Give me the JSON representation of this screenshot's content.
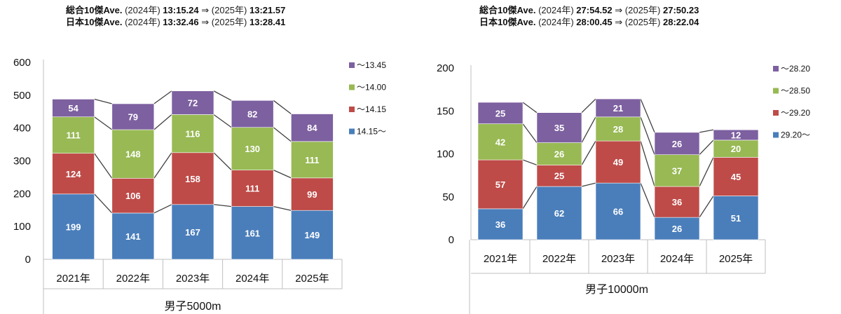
{
  "chart_data": [
    {
      "type": "bar",
      "stacked": true,
      "xlabel": "男子5000m",
      "ylabel": "",
      "ylim": [
        0,
        600
      ],
      "yticks": [
        0,
        100,
        200,
        300,
        400,
        500,
        600
      ],
      "categories": [
        "2021年",
        "2022年",
        "2023年",
        "2024年",
        "2025年"
      ],
      "series": [
        {
          "name": "14.15〜",
          "color": "#4a7ebb",
          "values": [
            199,
            141,
            167,
            161,
            149
          ]
        },
        {
          "name": "〜14.15",
          "color": "#be4b48",
          "values": [
            124,
            106,
            158,
            111,
            99
          ]
        },
        {
          "name": "〜14.00",
          "color": "#98b954",
          "values": [
            111,
            148,
            116,
            130,
            111
          ]
        },
        {
          "name": "〜13.45",
          "color": "#7d60a0",
          "values": [
            54,
            79,
            72,
            82,
            84
          ]
        }
      ],
      "legend_position": "right",
      "averages": [
        {
          "label": "総合10傑Ave.",
          "y1_label": "(2024年)",
          "y1": "13:15.24",
          "arrow": "⇒",
          "y2_label": "(2025年)",
          "y2": "13:21.57"
        },
        {
          "label": "日本10傑Ave.",
          "y1_label": "(2024年)",
          "y1": "13:32.46",
          "arrow": "⇒",
          "y2_label": "(2025年)",
          "y2": "13:28.41"
        }
      ]
    },
    {
      "type": "bar",
      "stacked": true,
      "xlabel": "男子10000m",
      "ylabel": "",
      "ylim": [
        0,
        200
      ],
      "yticks": [
        0,
        50,
        100,
        150,
        200
      ],
      "categories": [
        "2021年",
        "2022年",
        "2023年",
        "2024年",
        "2025年"
      ],
      "series": [
        {
          "name": "29.20〜",
          "color": "#4a7ebb",
          "values": [
            36,
            62,
            66,
            26,
            51
          ]
        },
        {
          "name": "〜29.20",
          "color": "#be4b48",
          "values": [
            57,
            25,
            49,
            36,
            45
          ]
        },
        {
          "name": "〜28.50",
          "color": "#98b954",
          "values": [
            42,
            26,
            28,
            37,
            20
          ]
        },
        {
          "name": "〜28.20",
          "color": "#7d60a0",
          "values": [
            25,
            35,
            21,
            26,
            12
          ]
        }
      ],
      "legend_position": "right",
      "averages": [
        {
          "label": "総合10傑Ave.",
          "y1_label": "(2024年)",
          "y1": "27:54.52",
          "arrow": "⇒",
          "y2_label": "(2025年)",
          "y2": "27:50.23"
        },
        {
          "label": "日本10傑Ave.",
          "y1_label": "(2024年)",
          "y1": "28:00.45",
          "arrow": "⇒",
          "y2_label": "(2025年)",
          "y2": "28:22.04"
        }
      ]
    }
  ]
}
